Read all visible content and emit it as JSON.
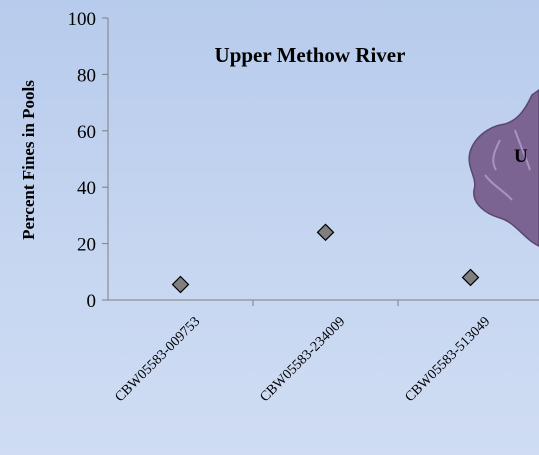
{
  "chart_data": {
    "type": "scatter",
    "title": "Upper Methow River",
    "ylabel": "Percent Fines in Pools",
    "xlabel": "",
    "categories": [
      "CBW05583-009753",
      "CBW05583-234009",
      "CBW05583-513049"
    ],
    "values": [
      5.5,
      24,
      8
    ],
    "ylim": [
      0,
      100
    ],
    "yticks": [
      "0",
      "20",
      "40",
      "60",
      "80",
      "100"
    ],
    "marker": "diamond",
    "marker_color": "#7f7f7f",
    "grid": false,
    "legend": "none"
  },
  "map_inset": {
    "visible_letter": "U",
    "color": "#7b6491"
  },
  "colors": {
    "background": "#c3d3ef",
    "axis": "#7f7f7f"
  }
}
